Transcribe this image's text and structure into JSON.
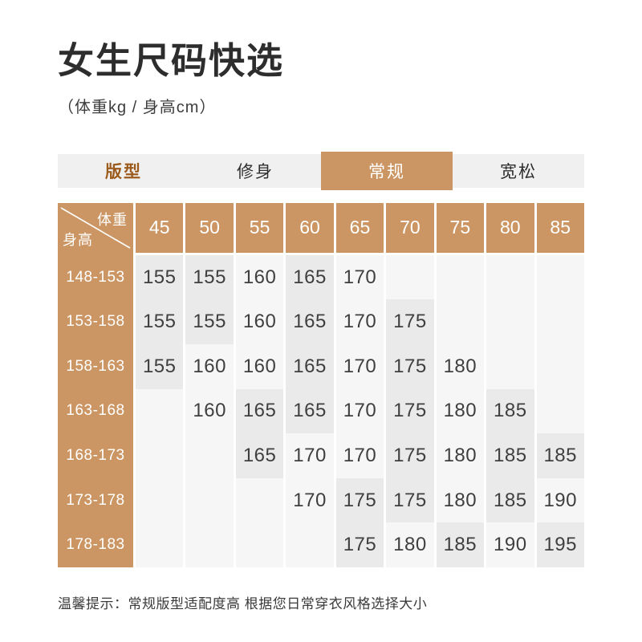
{
  "page": {
    "title": "女生尺码快选",
    "subtitle": "（体重kg / 身高cm）",
    "note": "温馨提示：常规版型适配度高 根据您日常穿衣风格选择大小"
  },
  "tabs": {
    "label": "版型",
    "options": [
      {
        "label": "修身",
        "active": false
      },
      {
        "label": "常规",
        "active": true
      },
      {
        "label": "宽松",
        "active": false
      }
    ]
  },
  "table": {
    "corner": {
      "top": "体重",
      "bottom": "身高"
    },
    "weights": [
      "45",
      "50",
      "55",
      "60",
      "65",
      "70",
      "75",
      "80",
      "85"
    ],
    "rows": [
      {
        "height": "148-153",
        "values": [
          "155",
          "155",
          "160",
          "165",
          "170",
          "",
          "",
          "",
          ""
        ]
      },
      {
        "height": "153-158",
        "values": [
          "155",
          "155",
          "160",
          "165",
          "170",
          "175",
          "",
          "",
          ""
        ]
      },
      {
        "height": "158-163",
        "values": [
          "155",
          "160",
          "160",
          "165",
          "170",
          "175",
          "180",
          "",
          ""
        ]
      },
      {
        "height": "163-168",
        "values": [
          "",
          "160",
          "165",
          "165",
          "170",
          "175",
          "180",
          "185",
          ""
        ]
      },
      {
        "height": "168-173",
        "values": [
          "",
          "",
          "165",
          "170",
          "170",
          "175",
          "180",
          "185",
          "185"
        ]
      },
      {
        "height": "173-178",
        "values": [
          "",
          "",
          "",
          "170",
          "175",
          "175",
          "180",
          "185",
          "190"
        ]
      },
      {
        "height": "178-183",
        "values": [
          "",
          "",
          "",
          "",
          "175",
          "180",
          "185",
          "190",
          "195"
        ]
      }
    ]
  },
  "colors": {
    "accent": "#CB9663",
    "brand_text": "#9C5B1D",
    "cell_shaded": "#EAEAEA",
    "cell_light": "#F6F6F6",
    "tab_bg": "#F0F0F0"
  }
}
